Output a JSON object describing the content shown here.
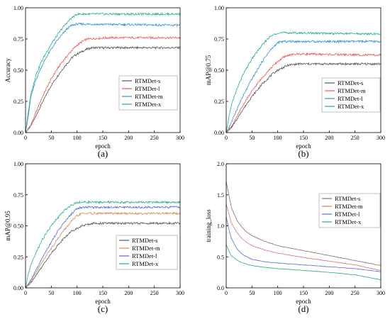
{
  "chart_data": [
    {
      "type": "line",
      "caption": "(a)",
      "xlabel": "epoch",
      "ylabel": "Accuracy",
      "xlim": [
        0,
        300
      ],
      "ylim": [
        0,
        1.0
      ],
      "xticks": [
        "0",
        "50",
        "100",
        "150",
        "200",
        "250",
        "300"
      ],
      "yticks": [
        "0.00",
        "0.25",
        "0.50",
        "0.75",
        "1.00"
      ],
      "legend_position": "center-right",
      "series": [
        {
          "name": "RTMDet-s",
          "color": "#555555",
          "points": [
            [
              0,
              0
            ],
            [
              10,
              0.05
            ],
            [
              20,
              0.13
            ],
            [
              30,
              0.22
            ],
            [
              40,
              0.3
            ],
            [
              50,
              0.38
            ],
            [
              60,
              0.44
            ],
            [
              70,
              0.5
            ],
            [
              80,
              0.55
            ],
            [
              90,
              0.6
            ],
            [
              100,
              0.63
            ],
            [
              110,
              0.65
            ],
            [
              120,
              0.67
            ],
            [
              130,
              0.68
            ],
            [
              300,
              0.68
            ]
          ]
        },
        {
          "name": "RTMDet-l",
          "color": "#ee5555",
          "points": [
            [
              0,
              0
            ],
            [
              10,
              0.06
            ],
            [
              20,
              0.16
            ],
            [
              30,
              0.26
            ],
            [
              40,
              0.35
            ],
            [
              50,
              0.43
            ],
            [
              60,
              0.5
            ],
            [
              70,
              0.56
            ],
            [
              80,
              0.61
            ],
            [
              90,
              0.66
            ],
            [
              100,
              0.7
            ],
            [
              110,
              0.73
            ],
            [
              120,
              0.75
            ],
            [
              160,
              0.76
            ],
            [
              300,
              0.76
            ]
          ]
        },
        {
          "name": "RTMDet-m",
          "color": "#2f8fd8",
          "points": [
            [
              0,
              0
            ],
            [
              5,
              0.12
            ],
            [
              10,
              0.28
            ],
            [
              20,
              0.42
            ],
            [
              30,
              0.52
            ],
            [
              40,
              0.6
            ],
            [
              50,
              0.67
            ],
            [
              60,
              0.73
            ],
            [
              70,
              0.78
            ],
            [
              80,
              0.83
            ],
            [
              90,
              0.86
            ],
            [
              100,
              0.87
            ],
            [
              300,
              0.86
            ]
          ]
        },
        {
          "name": "RTMDet-x",
          "color": "#22b08a",
          "points": [
            [
              0,
              0
            ],
            [
              5,
              0.15
            ],
            [
              10,
              0.3
            ],
            [
              20,
              0.46
            ],
            [
              30,
              0.56
            ],
            [
              40,
              0.64
            ],
            [
              50,
              0.71
            ],
            [
              60,
              0.77
            ],
            [
              70,
              0.83
            ],
            [
              80,
              0.88
            ],
            [
              90,
              0.92
            ],
            [
              100,
              0.95
            ],
            [
              300,
              0.95
            ]
          ]
        }
      ]
    },
    {
      "type": "line",
      "caption": "(b)",
      "xlabel": "epoch",
      "ylabel": "mAP@0.75",
      "xlim": [
        0,
        300
      ],
      "ylim": [
        0,
        1.0
      ],
      "xticks": [
        "0",
        "50",
        "100",
        "150",
        "200",
        "250",
        "300"
      ],
      "yticks": [
        "0.00",
        "0.25",
        "0.50",
        "0.75",
        "1.00"
      ],
      "legend_position": "center-right",
      "series": [
        {
          "name": "RTMDet-s",
          "color": "#555555",
          "points": [
            [
              0,
              0
            ],
            [
              10,
              0.04
            ],
            [
              20,
              0.1
            ],
            [
              30,
              0.17
            ],
            [
              40,
              0.23
            ],
            [
              50,
              0.29
            ],
            [
              60,
              0.34
            ],
            [
              70,
              0.39
            ],
            [
              80,
              0.43
            ],
            [
              90,
              0.47
            ],
            [
              100,
              0.5
            ],
            [
              110,
              0.52
            ],
            [
              120,
              0.54
            ],
            [
              140,
              0.55
            ],
            [
              300,
              0.55
            ]
          ]
        },
        {
          "name": "RTMDet-m",
          "color": "#ee5555",
          "points": [
            [
              0,
              0
            ],
            [
              10,
              0.05
            ],
            [
              20,
              0.12
            ],
            [
              30,
              0.2
            ],
            [
              40,
              0.27
            ],
            [
              50,
              0.33
            ],
            [
              60,
              0.39
            ],
            [
              70,
              0.44
            ],
            [
              80,
              0.49
            ],
            [
              90,
              0.53
            ],
            [
              100,
              0.57
            ],
            [
              110,
              0.6
            ],
            [
              120,
              0.62
            ],
            [
              140,
              0.63
            ],
            [
              300,
              0.62
            ]
          ]
        },
        {
          "name": "RTMDet-l",
          "color": "#2f8fd8",
          "points": [
            [
              0,
              0
            ],
            [
              10,
              0.08
            ],
            [
              20,
              0.18
            ],
            [
              30,
              0.27
            ],
            [
              40,
              0.35
            ],
            [
              50,
              0.43
            ],
            [
              60,
              0.5
            ],
            [
              70,
              0.57
            ],
            [
              80,
              0.63
            ],
            [
              90,
              0.68
            ],
            [
              100,
              0.72
            ],
            [
              110,
              0.73
            ],
            [
              300,
              0.73
            ]
          ]
        },
        {
          "name": "RTMDet-x",
          "color": "#22b08a",
          "points": [
            [
              0,
              0
            ],
            [
              5,
              0.12
            ],
            [
              10,
              0.22
            ],
            [
              20,
              0.34
            ],
            [
              30,
              0.44
            ],
            [
              40,
              0.52
            ],
            [
              50,
              0.59
            ],
            [
              60,
              0.65
            ],
            [
              70,
              0.7
            ],
            [
              80,
              0.75
            ],
            [
              90,
              0.78
            ],
            [
              100,
              0.8
            ],
            [
              300,
              0.79
            ]
          ]
        }
      ]
    },
    {
      "type": "line",
      "caption": "(c)",
      "xlabel": "epoch",
      "ylabel": "mAP@0.95",
      "xlim": [
        0,
        300
      ],
      "ylim": [
        0,
        1.0
      ],
      "xticks": [
        "0",
        "50",
        "100",
        "150",
        "200",
        "250",
        "300"
      ],
      "yticks": [
        "0.00",
        "0.25",
        "0.50",
        "0.75",
        "1.00"
      ],
      "legend_position": "center-right",
      "series": [
        {
          "name": "RTMDet-s",
          "color": "#555555",
          "points": [
            [
              0,
              0
            ],
            [
              10,
              0.04
            ],
            [
              20,
              0.1
            ],
            [
              30,
              0.16
            ],
            [
              40,
              0.22
            ],
            [
              50,
              0.28
            ],
            [
              60,
              0.33
            ],
            [
              70,
              0.38
            ],
            [
              80,
              0.42
            ],
            [
              90,
              0.46
            ],
            [
              100,
              0.48
            ],
            [
              110,
              0.5
            ],
            [
              130,
              0.52
            ],
            [
              300,
              0.52
            ]
          ]
        },
        {
          "name": "RTMDet-m",
          "color": "#d98b52",
          "points": [
            [
              0,
              0
            ],
            [
              10,
              0.05
            ],
            [
              20,
              0.12
            ],
            [
              30,
              0.19
            ],
            [
              40,
              0.26
            ],
            [
              50,
              0.32
            ],
            [
              60,
              0.38
            ],
            [
              70,
              0.44
            ],
            [
              80,
              0.49
            ],
            [
              90,
              0.54
            ],
            [
              100,
              0.58
            ],
            [
              110,
              0.6
            ],
            [
              300,
              0.6
            ]
          ]
        },
        {
          "name": "RTMDet-l",
          "color": "#4a6fd8",
          "points": [
            [
              0,
              0
            ],
            [
              10,
              0.06
            ],
            [
              20,
              0.14
            ],
            [
              30,
              0.22
            ],
            [
              40,
              0.3
            ],
            [
              50,
              0.37
            ],
            [
              60,
              0.44
            ],
            [
              70,
              0.5
            ],
            [
              80,
              0.55
            ],
            [
              90,
              0.6
            ],
            [
              100,
              0.64
            ],
            [
              110,
              0.65
            ],
            [
              300,
              0.65
            ]
          ]
        },
        {
          "name": "RTMDet-x",
          "color": "#22b08a",
          "points": [
            [
              0,
              0
            ],
            [
              5,
              0.1
            ],
            [
              10,
              0.18
            ],
            [
              20,
              0.28
            ],
            [
              30,
              0.37
            ],
            [
              40,
              0.44
            ],
            [
              50,
              0.5
            ],
            [
              60,
              0.55
            ],
            [
              70,
              0.6
            ],
            [
              80,
              0.64
            ],
            [
              90,
              0.67
            ],
            [
              100,
              0.69
            ],
            [
              300,
              0.69
            ]
          ]
        }
      ]
    },
    {
      "type": "line",
      "caption": "(d)",
      "xlabel": "epoch",
      "ylabel": "training_loss",
      "xlim": [
        0,
        300
      ],
      "ylim": [
        0,
        2.0
      ],
      "xticks": [
        "0",
        "50",
        "100",
        "150",
        "200",
        "250",
        "300"
      ],
      "yticks": [
        "0.0",
        "0.5",
        "1.0",
        "1.5",
        "2.0"
      ],
      "legend_position": "top-right",
      "series": [
        {
          "name": "RTMDet-s",
          "color": "#8c6d6d",
          "points": [
            [
              0,
              1.72
            ],
            [
              5,
              1.5
            ],
            [
              10,
              1.3
            ],
            [
              20,
              1.1
            ],
            [
              30,
              0.98
            ],
            [
              40,
              0.9
            ],
            [
              50,
              0.84
            ],
            [
              75,
              0.75
            ],
            [
              100,
              0.68
            ],
            [
              150,
              0.6
            ],
            [
              200,
              0.52
            ],
            [
              250,
              0.44
            ],
            [
              300,
              0.36
            ]
          ]
        },
        {
          "name": "RTMDet-m",
          "color": "#e07272",
          "points": [
            [
              0,
              1.35
            ],
            [
              5,
              1.2
            ],
            [
              10,
              1.05
            ],
            [
              20,
              0.9
            ],
            [
              30,
              0.8
            ],
            [
              40,
              0.73
            ],
            [
              50,
              0.68
            ],
            [
              75,
              0.61
            ],
            [
              100,
              0.56
            ],
            [
              150,
              0.49
            ],
            [
              200,
              0.43
            ],
            [
              250,
              0.37
            ],
            [
              300,
              0.28
            ]
          ]
        },
        {
          "name": "RTMDet-l",
          "color": "#5a6fe0",
          "points": [
            [
              0,
              1.15
            ],
            [
              5,
              0.95
            ],
            [
              10,
              0.8
            ],
            [
              20,
              0.64
            ],
            [
              30,
              0.55
            ],
            [
              40,
              0.5
            ],
            [
              50,
              0.46
            ],
            [
              75,
              0.42
            ],
            [
              100,
              0.4
            ],
            [
              150,
              0.37
            ],
            [
              200,
              0.34
            ],
            [
              250,
              0.31
            ],
            [
              300,
              0.26
            ]
          ]
        },
        {
          "name": "RTMDet-x",
          "color": "#2ab07e",
          "points": [
            [
              0,
              0.7
            ],
            [
              5,
              0.6
            ],
            [
              10,
              0.52
            ],
            [
              20,
              0.45
            ],
            [
              30,
              0.41
            ],
            [
              40,
              0.38
            ],
            [
              50,
              0.36
            ],
            [
              75,
              0.33
            ],
            [
              100,
              0.31
            ],
            [
              150,
              0.28
            ],
            [
              200,
              0.25
            ],
            [
              250,
              0.21
            ],
            [
              300,
              0.13
            ]
          ]
        }
      ]
    }
  ]
}
